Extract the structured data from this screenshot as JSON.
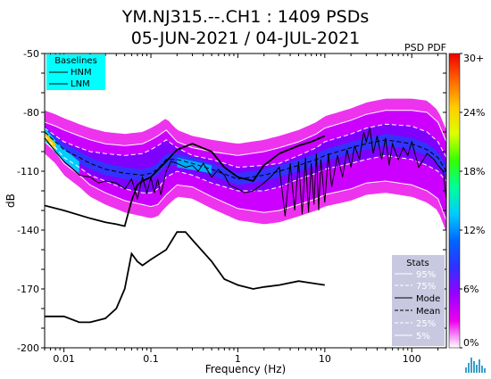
{
  "chart_data": {
    "type": "heatmap",
    "title": "YM.NJ315.--.CH1 : 1409 PSDs",
    "subtitle": "05-JUN-2021 / 04-JUL-2021",
    "colorbar_title": "PSD PDF",
    "xlabel": "Frequency (Hz)",
    "ylabel": "dB",
    "x_scale": "log",
    "xlim": [
      0.006,
      250
    ],
    "ylim": [
      -200,
      -50
    ],
    "x_ticks": [
      {
        "value": 0.01,
        "label": "0.01"
      },
      {
        "value": 0.1,
        "label": "0.1"
      },
      {
        "value": 1,
        "label": "1"
      },
      {
        "value": 10,
        "label": "10"
      },
      {
        "value": 100,
        "label": "100"
      }
    ],
    "y_ticks": [
      {
        "value": -50,
        "label": "-50"
      },
      {
        "value": -80,
        "label": "-80"
      },
      {
        "value": -110,
        "label": "-110"
      },
      {
        "value": -140,
        "label": "-140"
      },
      {
        "value": -170,
        "label": "-170"
      },
      {
        "value": -200,
        "label": "-200"
      }
    ],
    "colorbar": {
      "range": [
        0,
        30
      ],
      "ticks": [
        {
          "value": 0,
          "label": "0%"
        },
        {
          "value": 6,
          "label": "6%"
        },
        {
          "value": 12,
          "label": "12%"
        },
        {
          "value": 18,
          "label": "18%"
        },
        {
          "value": 24,
          "label": "24%"
        },
        {
          "value": 30,
          "label": "30+"
        }
      ],
      "colors": [
        "#ffffff",
        "#ee00ee",
        "#9900ff",
        "#3030ff",
        "#0066ff",
        "#00ccff",
        "#00ff99",
        "#33ff00",
        "#ddff00",
        "#ffcc00",
        "#ff6600",
        "#ee0000"
      ]
    },
    "baselines_legend": {
      "title": "Baselines",
      "entries": [
        "HNM",
        "LNM"
      ],
      "background": "#00ffff"
    },
    "stats_legend": {
      "title": "Stats",
      "entries": [
        "95%",
        "75%",
        "Mode",
        "Mean",
        "25%",
        "5%"
      ],
      "background": "#c8c8e0"
    },
    "series": [
      {
        "name": "HNM",
        "x": [
          0.006,
          0.01,
          0.02,
          0.03,
          0.04,
          0.05,
          0.06,
          0.07,
          0.08,
          0.1,
          0.15,
          0.2,
          0.3,
          0.5,
          0.7,
          1.0,
          1.5,
          2,
          3,
          5,
          7,
          10
        ],
        "y": [
          -127.5,
          -130,
          -134,
          -136,
          -137,
          -138,
          -125,
          -117,
          -115,
          -113,
          -105,
          -99,
          -96,
          -100,
          -108,
          -113,
          -115,
          -107,
          -101,
          -97,
          -95,
          -92
        ]
      },
      {
        "name": "LNM",
        "x": [
          0.006,
          0.01,
          0.015,
          0.02,
          0.03,
          0.04,
          0.05,
          0.06,
          0.07,
          0.08,
          0.1,
          0.15,
          0.2,
          0.25,
          0.3,
          0.5,
          0.7,
          1.0,
          1.5,
          2,
          3,
          5,
          7,
          10
        ],
        "y": [
          -184,
          -184,
          -187,
          -187,
          -185,
          -180,
          -170,
          -152,
          -156,
          -158,
          -155,
          -150,
          -141,
          -141,
          -145,
          -156,
          -165,
          -168,
          -170,
          -169,
          -168,
          -166,
          -167,
          -168
        ]
      },
      {
        "name": "95%",
        "x": [
          0.006,
          0.008,
          0.01,
          0.015,
          0.02,
          0.03,
          0.05,
          0.08,
          0.1,
          0.12,
          0.15,
          0.2,
          0.3,
          0.5,
          1,
          2,
          3,
          5,
          8,
          10,
          20,
          30,
          50,
          100,
          150,
          200,
          250
        ],
        "y": [
          -85,
          -87,
          -89,
          -92,
          -94,
          -96,
          -97,
          -96,
          -94,
          -92,
          -89,
          -95,
          -98,
          -100,
          -102,
          -100,
          -98,
          -95,
          -91,
          -88,
          -84,
          -81,
          -79,
          -79,
          -80,
          -85,
          -95
        ]
      },
      {
        "name": "75%",
        "x": [
          0.006,
          0.008,
          0.01,
          0.015,
          0.02,
          0.03,
          0.05,
          0.08,
          0.1,
          0.12,
          0.15,
          0.2,
          0.3,
          0.5,
          1,
          2,
          3,
          5,
          8,
          10,
          20,
          30,
          50,
          100,
          150,
          200,
          250
        ],
        "y": [
          -88,
          -92,
          -95,
          -98,
          -100,
          -101,
          -102,
          -101,
          -99,
          -97,
          -94,
          -98,
          -102,
          -104,
          -108,
          -107,
          -106,
          -102,
          -98,
          -95,
          -91,
          -88,
          -86,
          -87,
          -90,
          -95,
          -103
        ]
      },
      {
        "name": "Mean",
        "x": [
          0.006,
          0.008,
          0.01,
          0.015,
          0.02,
          0.03,
          0.05,
          0.08,
          0.1,
          0.12,
          0.15,
          0.2,
          0.3,
          0.5,
          1,
          2,
          3,
          5,
          8,
          10,
          20,
          30,
          50,
          100,
          150,
          200,
          250
        ],
        "y": [
          -90,
          -95,
          -99,
          -103,
          -106,
          -109,
          -111,
          -112,
          -111,
          -109,
          -104,
          -104,
          -106,
          -109,
          -114,
          -112,
          -110,
          -107,
          -104,
          -102,
          -98,
          -96,
          -94,
          -96,
          -99,
          -103,
          -110
        ]
      },
      {
        "name": "25%",
        "x": [
          0.006,
          0.008,
          0.01,
          0.015,
          0.02,
          0.03,
          0.05,
          0.08,
          0.1,
          0.12,
          0.15,
          0.2,
          0.3,
          0.5,
          1,
          2,
          3,
          5,
          8,
          10,
          20,
          30,
          50,
          100,
          150,
          200,
          250
        ],
        "y": [
          -92,
          -98,
          -103,
          -108,
          -112,
          -115,
          -119,
          -121,
          -121,
          -119,
          -113,
          -110,
          -112,
          -116,
          -120,
          -120,
          -118,
          -114,
          -111,
          -109,
          -106,
          -104,
          -102,
          -104,
          -107,
          -110,
          -115
        ]
      },
      {
        "name": "5%",
        "x": [
          0.006,
          0.008,
          0.01,
          0.015,
          0.02,
          0.03,
          0.05,
          0.08,
          0.1,
          0.12,
          0.15,
          0.2,
          0.3,
          0.5,
          1,
          2,
          3,
          5,
          8,
          10,
          20,
          30,
          50,
          100,
          150,
          200,
          250
        ],
        "y": [
          -95,
          -100,
          -106,
          -112,
          -117,
          -121,
          -125,
          -127,
          -128,
          -127,
          -122,
          -117,
          -118,
          -123,
          -129,
          -131,
          -130,
          -127,
          -124,
          -122,
          -119,
          -116,
          -115,
          -117,
          -120,
          -124,
          -135
        ]
      },
      {
        "name": "Mode",
        "x": [
          0.006,
          0.008,
          0.01,
          0.012,
          0.015,
          0.02,
          0.025,
          0.03,
          0.04,
          0.05,
          0.06,
          0.07,
          0.08,
          0.09,
          0.1,
          0.11,
          0.12,
          0.13,
          0.15,
          0.17,
          0.2,
          0.25,
          0.3,
          0.35,
          0.4,
          0.5,
          0.6,
          0.7,
          0.8,
          1.0,
          1.2,
          1.5,
          2,
          2.5,
          3,
          3.5,
          4,
          4.5,
          5,
          5.5,
          6,
          6.5,
          7,
          7.5,
          8,
          8.5,
          9,
          10,
          11,
          12,
          14,
          16,
          18,
          20,
          22,
          25,
          28,
          30,
          33,
          36,
          40,
          45,
          50,
          55,
          60,
          70,
          80,
          90,
          100,
          120,
          150,
          180,
          200,
          230,
          250
        ],
        "y": [
          -93,
          -100,
          -105,
          -108,
          -112,
          -113,
          -116,
          -115,
          -116,
          -119,
          -114,
          -124,
          -113,
          -121,
          -113,
          -121,
          -114,
          -122,
          -110,
          -105,
          -106,
          -108,
          -107,
          -110,
          -106,
          -113,
          -109,
          -112,
          -117,
          -119,
          -121,
          -120,
          -116,
          -112,
          -108,
          -133,
          -106,
          -130,
          -105,
          -132,
          -103,
          -131,
          -106,
          -127,
          -101,
          -130,
          -104,
          -126,
          -101,
          -118,
          -102,
          -113,
          -99,
          -108,
          -97,
          -104,
          -90,
          -95,
          -88,
          -101,
          -92,
          -104,
          -93,
          -107,
          -96,
          -104,
          -98,
          -102,
          -95,
          -108,
          -101,
          -104,
          -107,
          -110,
          -125
        ]
      }
    ]
  }
}
